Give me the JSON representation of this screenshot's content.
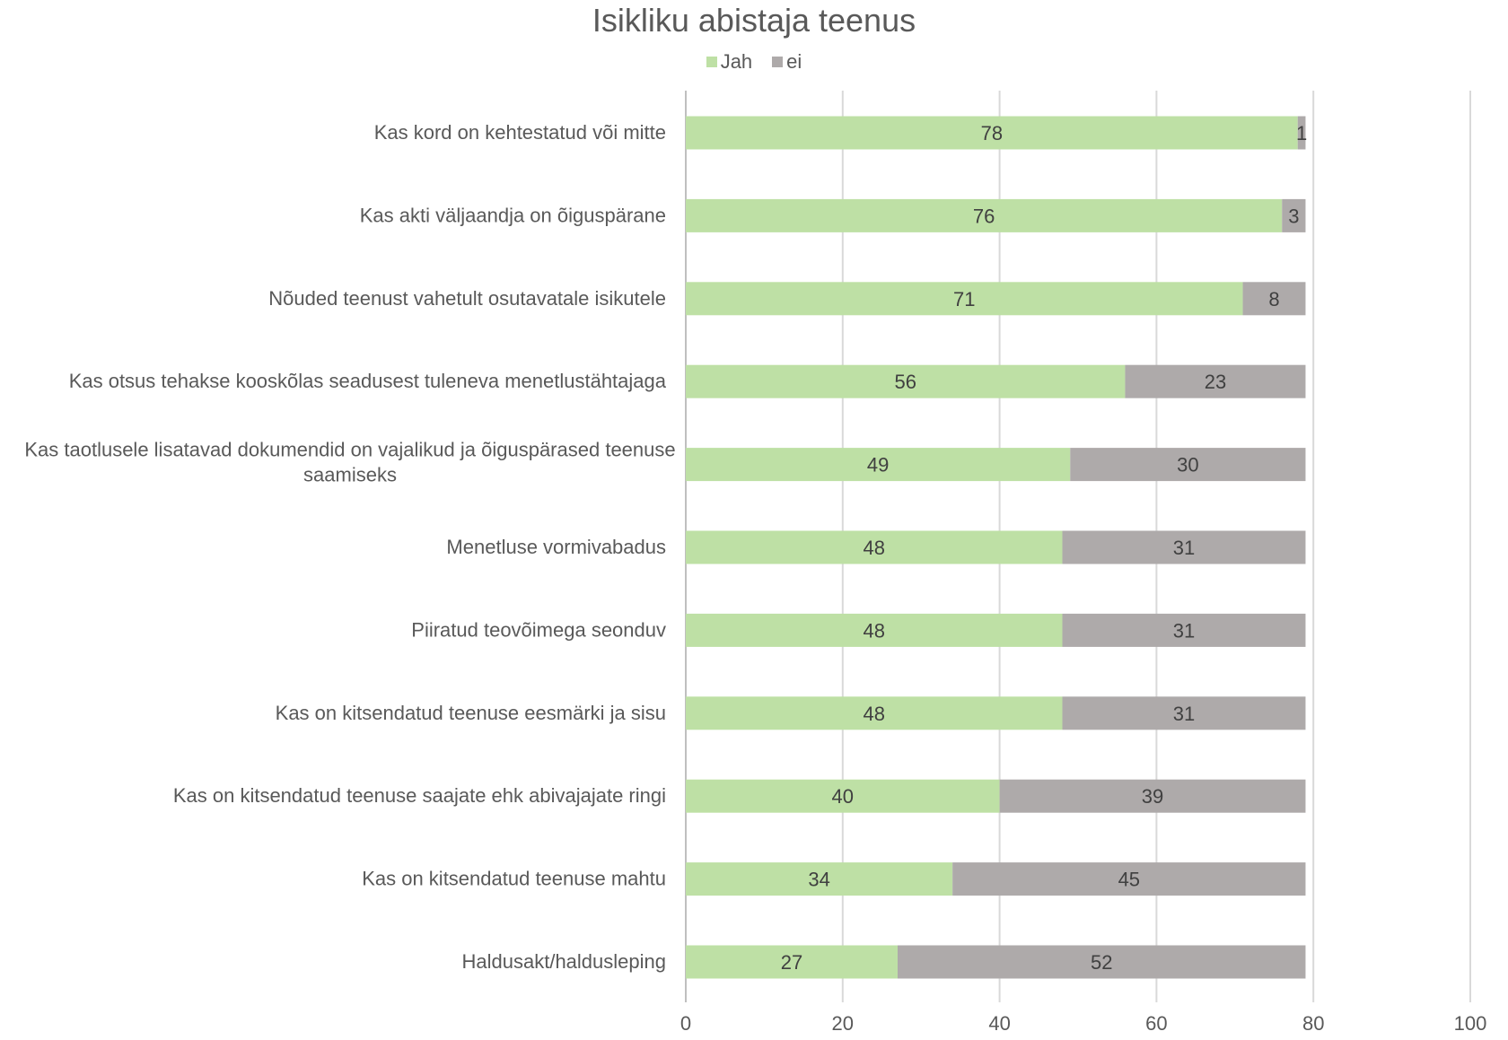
{
  "chart_data": {
    "type": "bar",
    "orientation": "horizontal",
    "stacked": true,
    "title": "Isikliku abistaja teenus",
    "categories": [
      "Kas kord on kehtestatud või mitte",
      "Kas akti väljaandja on õiguspärane",
      "Nõuded teenust vahetult osutavatale isikutele",
      "Kas otsus tehakse kooskõlas seadusest tuleneva menetlustähtajaga",
      "Kas taotlusele lisatavad dokumendid on vajalikud ja õiguspärased teenuse saamiseks",
      "Menetluse vormivabadus",
      "Piiratud teovõimega seonduv",
      "Kas on kitsendatud teenuse eesmärki ja sisu",
      "Kas on kitsendatud teenuse saajate ehk abivajajate ringi",
      "Kas on kitsendatud teenuse mahtu",
      "Haldusakt/haldusleping"
    ],
    "series": [
      {
        "name": "Jah",
        "color": "#bee0a5",
        "values": [
          78,
          76,
          71,
          56,
          49,
          48,
          48,
          48,
          40,
          34,
          27
        ]
      },
      {
        "name": "ei",
        "color": "#aeaaaa",
        "values": [
          1,
          3,
          8,
          23,
          30,
          31,
          31,
          31,
          39,
          45,
          52
        ]
      }
    ],
    "xlim": [
      0,
      100
    ],
    "xticks": [
      0,
      20,
      40,
      60,
      80,
      100
    ],
    "grid": true,
    "legend_position": "top",
    "data_labels": true
  }
}
